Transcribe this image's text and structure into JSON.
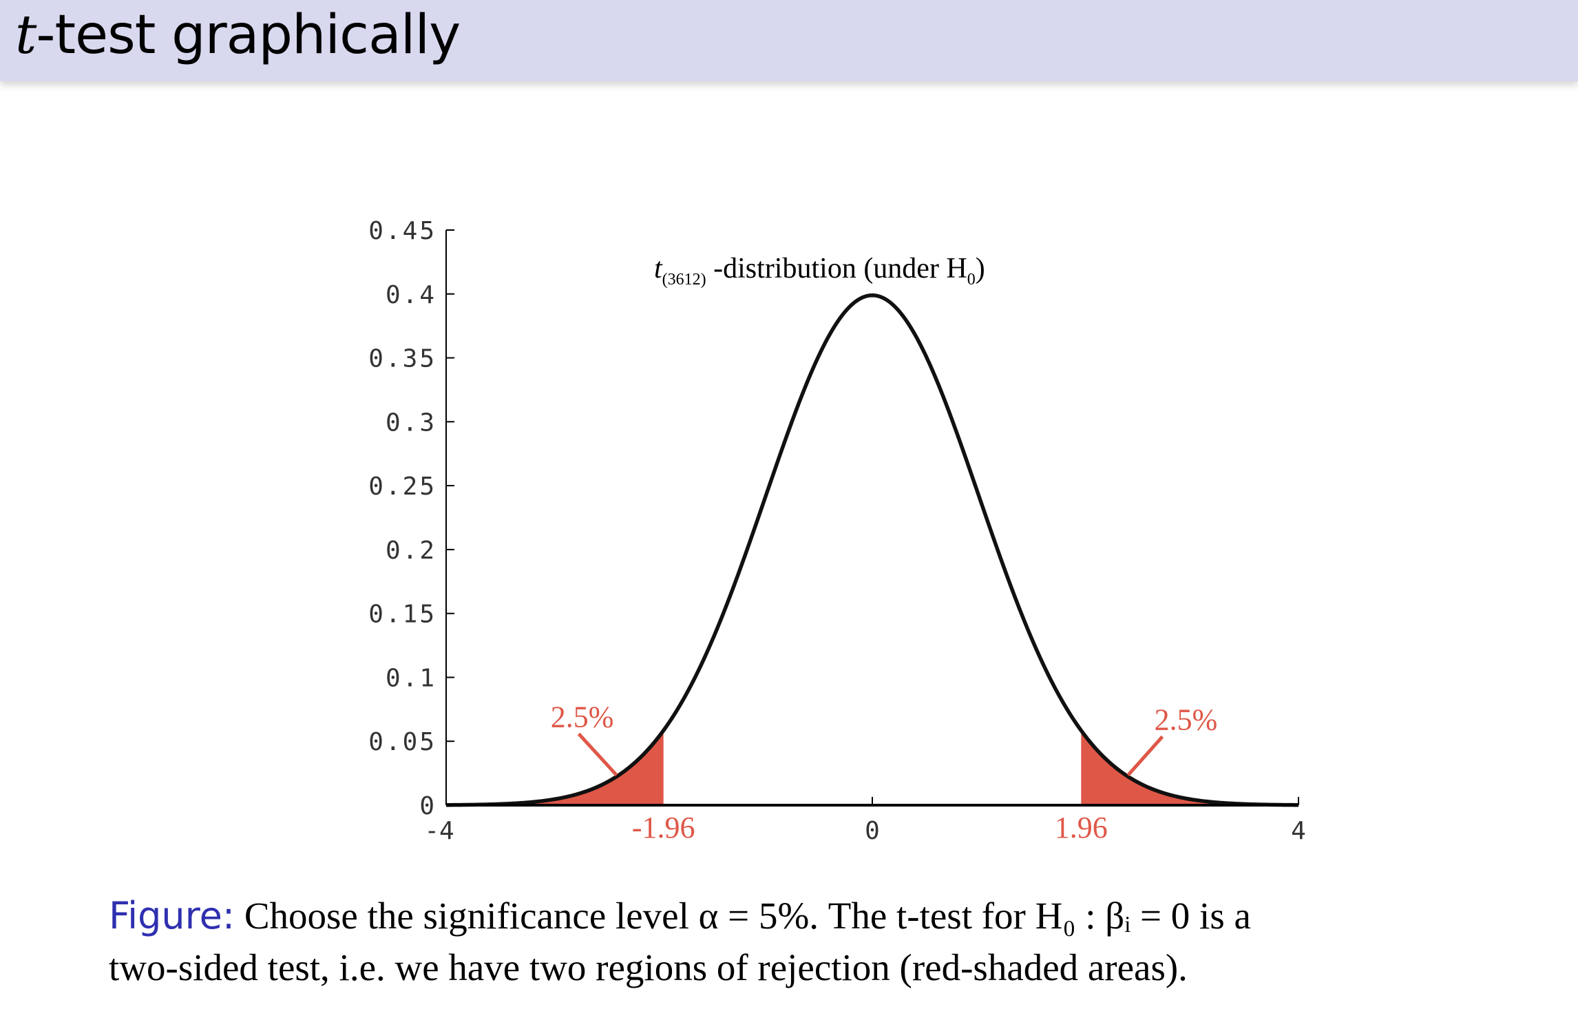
{
  "slide": {
    "title_var": "t",
    "title_rest": "-test graphically"
  },
  "caption": {
    "label": "Figure:",
    "line1": " Choose the significance level α = 5%. The t-test for H₀ : βᵢ = 0 is a",
    "line2": "two-sided test, i.e. we have two regions of rejection (red-shaded areas)."
  },
  "chart_data": {
    "type": "area",
    "title_main": "t",
    "title_sub": "(3612)",
    "title_rest": " -distribution (under H",
    "title_h_sub": "0",
    "title_close": ")",
    "xlim": [
      -4,
      4
    ],
    "ylim": [
      0,
      0.45
    ],
    "x_ticks": [
      -4,
      0,
      4
    ],
    "x_tick_labels": [
      "-4",
      "0",
      "4"
    ],
    "y_ticks": [
      0,
      0.05,
      0.1,
      0.15,
      0.2,
      0.25,
      0.3,
      0.35,
      0.4,
      0.45
    ],
    "y_tick_labels": [
      "0",
      "0.05",
      "0.1",
      "0.15",
      "0.2",
      "0.25",
      "0.3",
      "0.35",
      "0.4",
      "0.45"
    ],
    "critical_values": [
      -1.96,
      1.96
    ],
    "critical_labels": [
      "-1.96",
      "1.96"
    ],
    "tail_labels": [
      "2.5%",
      "2.5%"
    ],
    "curve_color": "#111111",
    "shade_color": "#df5747",
    "label_color": "#df5747"
  }
}
